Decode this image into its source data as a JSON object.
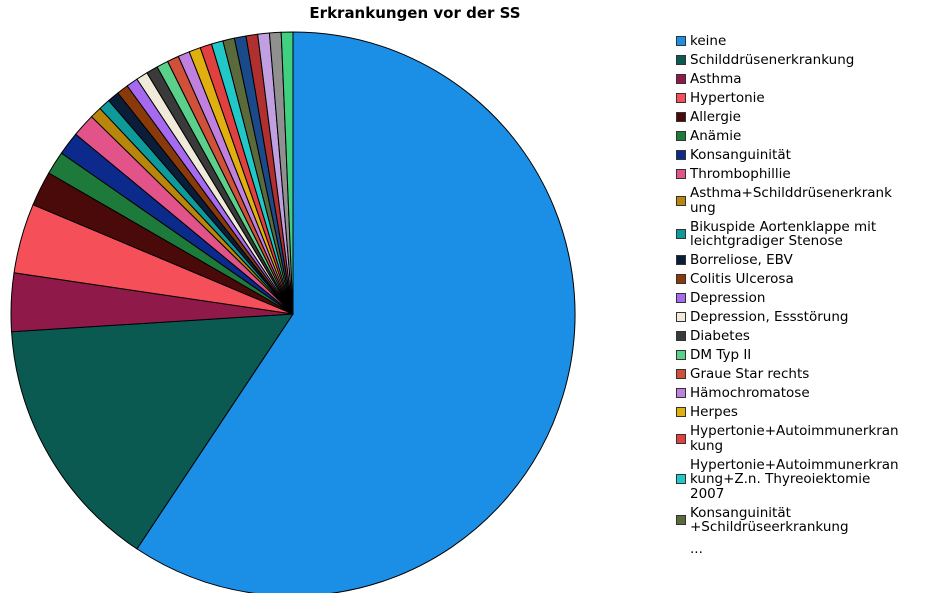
{
  "chart_data": {
    "type": "pie",
    "title": "Erkrankungen vor der SS",
    "categories": [
      "keine",
      "Schilddrüsenerkrankung",
      "Asthma",
      "Hypertonie",
      "Allergie",
      "Anämie",
      "Konsanguinität",
      "Thrombophillie",
      "Asthma+Schilddrüsenerkrank\nung",
      "Bikuspide Aortenklappe mit\nleichtgradiger Stenose",
      "Borreliose, EBV",
      "Colitis Ulcerosa",
      "Depression",
      "Depression, Essstörung",
      "Diabetes",
      "DM Typ II",
      "Graue Star rechts",
      "Hämochromatose",
      "Herpes",
      "Hypertonie+Autoimmunerkran\nkung",
      "Hypertonie+Autoimmunerkran\nkung+Z.n. Thyreoiektomie\n2007",
      "Konsanguinität\n+Schildrüseerkrankung",
      null,
      null,
      null,
      null,
      null
    ],
    "values": [
      89,
      22,
      5,
      6,
      3,
      2,
      2,
      2,
      1,
      1,
      1,
      1,
      1,
      1,
      1,
      1,
      1,
      1,
      1,
      1,
      1,
      1,
      1,
      1,
      1,
      1,
      1
    ],
    "colors": [
      "#1b8fe6",
      "#0b5a52",
      "#8f1a4a",
      "#f5505a",
      "#4a0a0a",
      "#1e7a3a",
      "#0c2a8c",
      "#e2538a",
      "#b8860b",
      "#0e9a9a",
      "#0a1e3a",
      "#8a3a0a",
      "#a66af0",
      "#f0ead8",
      "#3a3a3a",
      "#5ad08a",
      "#d0503a",
      "#c080e0",
      "#e0b010",
      "#e04040",
      "#20c8c8",
      "#5a6a3a",
      "#1a4a8a",
      "#b03030",
      "#c0a0e0",
      "#909090",
      "#40d080"
    ],
    "legend_more": "..."
  }
}
